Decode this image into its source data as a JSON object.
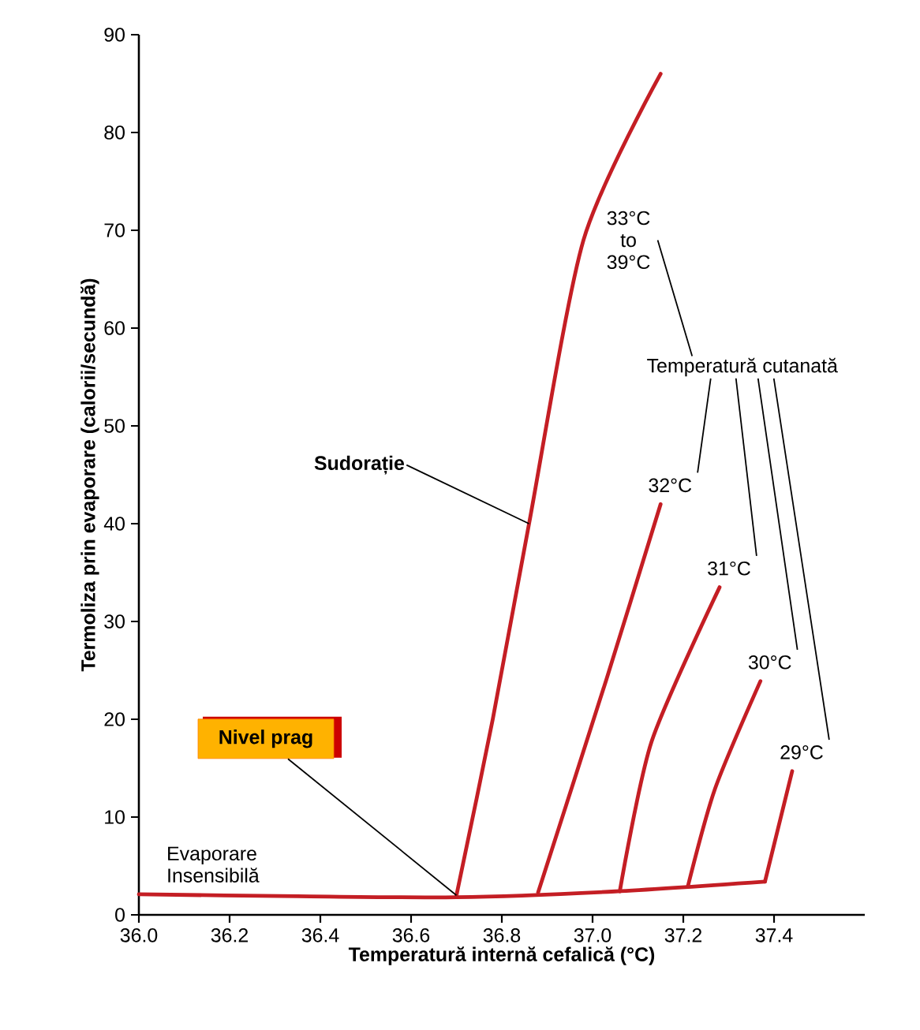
{
  "chart_data": {
    "type": "line",
    "xlabel": "Temperatură internă cefalică (°C)",
    "ylabel": "Termoliza prin evaporare (calorii/secundă)",
    "xlim": [
      36.0,
      37.6
    ],
    "ylim": [
      0,
      90
    ],
    "xticks": [
      {
        "value": 36.0,
        "label": "36.0"
      },
      36.2,
      36.4,
      36.6,
      36.8,
      {
        "value": 37.0,
        "label": "37.0"
      },
      37.2,
      37.4
    ],
    "yticks": [
      0,
      10,
      20,
      30,
      40,
      50,
      60,
      70,
      80,
      90
    ],
    "legend": false,
    "marker": "none",
    "line_style": "solid",
    "series": [
      {
        "name": "Evaporare Insensibilă",
        "color": "#c41e24",
        "x": [
          36.0,
          36.35,
          36.7,
          37.05,
          37.38
        ],
        "values": [
          2.1,
          1.9,
          1.8,
          2.4,
          3.4
        ]
      },
      {
        "name": "33°C to 39°C",
        "color": "#c41e24",
        "x": [
          36.7,
          36.78,
          36.86,
          36.98,
          37.15
        ],
        "values": [
          2,
          20,
          40,
          69,
          86
        ]
      },
      {
        "name": "32°C",
        "color": "#c41e24",
        "x": [
          36.88,
          37.03,
          37.15
        ],
        "values": [
          2.3,
          24,
          42
        ]
      },
      {
        "name": "31°C",
        "color": "#c41e24",
        "x": [
          37.06,
          37.13,
          37.28
        ],
        "values": [
          2.4,
          17.7,
          33.5
        ]
      },
      {
        "name": "30°C",
        "color": "#c41e24",
        "x": [
          37.21,
          37.27,
          37.37
        ],
        "values": [
          2.9,
          12.9,
          23.9
        ]
      },
      {
        "name": "29°C",
        "color": "#c41e24",
        "x": [
          37.38,
          37.44
        ],
        "values": [
          3.4,
          14.7
        ]
      }
    ],
    "annotations": [
      "Temperatură cutanată",
      {
        "text": "Sudorație",
        "x": 36.86,
        "y": 40
      },
      {
        "text": "Nivel prag",
        "x": 36.7,
        "y": 2
      }
    ]
  }
}
